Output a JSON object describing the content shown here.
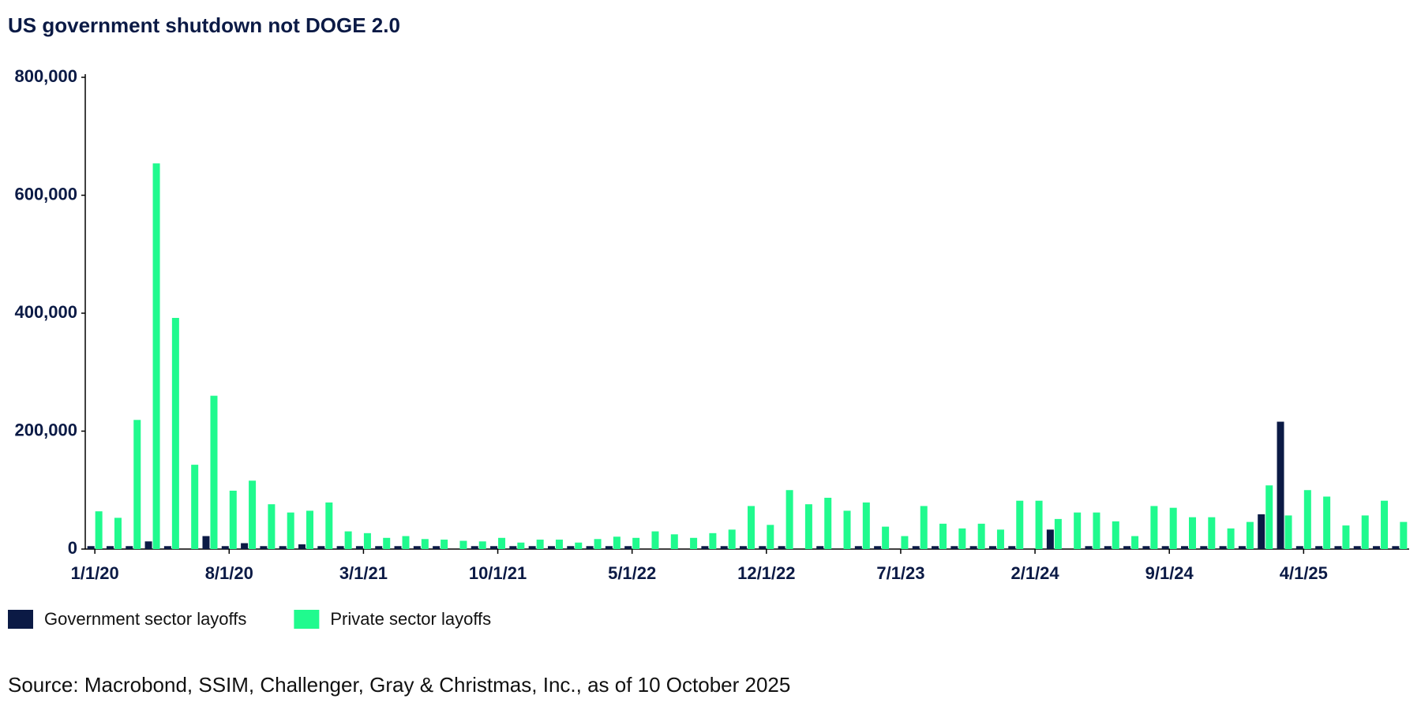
{
  "chart_data": {
    "type": "bar",
    "title": "US government shutdown not DOGE 2.0",
    "source": "Source: Macrobond, SSIM, Challenger, Gray & Christmas, Inc., as of 10 October 2025",
    "categories": [
      "1/1/20",
      null,
      null,
      null,
      null,
      null,
      null,
      "8/1/20",
      null,
      null,
      null,
      null,
      null,
      null,
      "3/1/21",
      null,
      null,
      null,
      null,
      null,
      null,
      "10/1/21",
      null,
      null,
      null,
      null,
      null,
      null,
      "5/1/22",
      null,
      null,
      null,
      null,
      null,
      null,
      "12/1/22",
      null,
      null,
      null,
      null,
      null,
      null,
      "7/1/23",
      null,
      null,
      null,
      null,
      null,
      null,
      "2/1/24",
      null,
      null,
      null,
      null,
      null,
      null,
      "9/1/24",
      null,
      null,
      null,
      null,
      null,
      null,
      "4/1/25",
      null,
      null,
      null,
      null,
      null
    ],
    "series": [
      {
        "name": "Government sector layoffs",
        "color": "#0b1a45",
        "values": [
          5000,
          5000,
          5000,
          13000,
          5000,
          null,
          22000,
          5000,
          10000,
          5000,
          5000,
          8000,
          5000,
          5000,
          5000,
          5000,
          5000,
          5000,
          5000,
          null,
          5000,
          5000,
          5000,
          5000,
          5000,
          5000,
          5000,
          5000,
          5000,
          null,
          null,
          null,
          5000,
          5000,
          5000,
          5000,
          5000,
          null,
          5000,
          null,
          5000,
          5000,
          null,
          5000,
          5000,
          5000,
          5000,
          5000,
          5000,
          null,
          33000,
          null,
          5000,
          5000,
          5000,
          5000,
          5000,
          5000,
          5000,
          5000,
          5000,
          59000,
          216000,
          5000,
          5000,
          5000,
          5000,
          5000,
          5000
        ]
      },
      {
        "name": "Private sector layoffs",
        "color": "#20fa8e",
        "values": [
          64000,
          53000,
          219000,
          654000,
          392000,
          143000,
          260000,
          99000,
          116000,
          76000,
          62000,
          65000,
          79000,
          30000,
          27000,
          19000,
          22000,
          17000,
          16000,
          14000,
          13000,
          19000,
          11000,
          16000,
          16000,
          11000,
          17000,
          21000,
          19000,
          30000,
          25000,
          19000,
          27000,
          33000,
          73000,
          41000,
          100000,
          76000,
          87000,
          65000,
          79000,
          38000,
          22000,
          73000,
          43000,
          35000,
          43000,
          33000,
          82000,
          82000,
          51000,
          62000,
          62000,
          47000,
          22000,
          73000,
          70000,
          54000,
          54000,
          35000,
          46000,
          108000,
          57000,
          100000,
          89000,
          40000,
          57000,
          82000,
          46000
        ]
      }
    ],
    "ylim": [
      0,
      800000
    ],
    "yticks": [
      0,
      {
        "value": 200000,
        "label": "200,000"
      },
      {
        "value": 400000,
        "label": "400,000"
      },
      {
        "value": 600000,
        "label": "600,000"
      },
      {
        "value": 800000,
        "label": "800,000"
      }
    ],
    "grid": false,
    "legend": "bottom-left"
  }
}
